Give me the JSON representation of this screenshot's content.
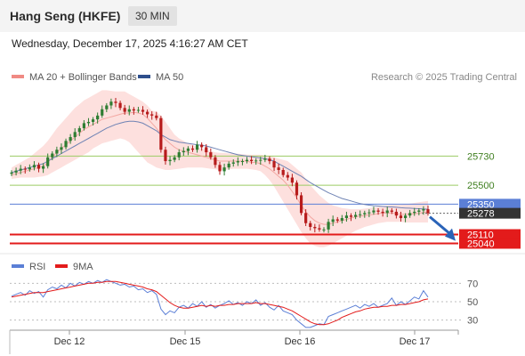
{
  "header": {
    "title": "Hang Seng (HKFE)",
    "timeframe": "30 MIN",
    "datetime": "Wednesday, December 17, 2025 4:16:27 AM CET"
  },
  "legend": {
    "items": [
      {
        "label": "MA 20 + Bollinger Bands",
        "color": "#f08a84"
      },
      {
        "label": "MA 50",
        "color": "#2e4f8c"
      }
    ],
    "credit": "Research © 2025 Trading Central"
  },
  "colors": {
    "candle_up": "#2e7d32",
    "candle_down": "#b71c1c",
    "bollinger_fill": "#fde0de",
    "ma20": "#f3a7a2",
    "ma50": "#6f83b4",
    "resistance": "#9ccc65",
    "pivot": "#5b7fd6",
    "support": "#e31b1b",
    "current_price": "#333333",
    "arrow": "#2a63b8",
    "rsi": "#5b7fd6",
    "rsi_ma": "#e31b1b"
  },
  "chart_data": [
    {
      "type": "candlestick",
      "xaxis_labels": [
        "Dec 12",
        "Dec 15",
        "Dec 16",
        "Dec 17"
      ],
      "levels": [
        {
          "label": "25730",
          "value": 25730,
          "kind": "resistance"
        },
        {
          "label": "25500",
          "value": 25500,
          "kind": "resistance"
        },
        {
          "label": "25350",
          "value": 25350,
          "kind": "pivot"
        },
        {
          "label": "25278",
          "value": 25278,
          "kind": "last"
        },
        {
          "label": "25110",
          "value": 25110,
          "kind": "support"
        },
        {
          "label": "25040",
          "value": 25040,
          "kind": "support"
        }
      ],
      "ylim": [
        24980,
        26260
      ],
      "close_path": [
        25600,
        25615,
        25630,
        25625,
        25640,
        25660,
        25630,
        25650,
        25720,
        25750,
        25780,
        25800,
        25850,
        25880,
        25920,
        25950,
        25990,
        26000,
        26020,
        26050,
        26100,
        26130,
        26160,
        26150,
        26110,
        26080,
        26100,
        26090,
        26095,
        26080,
        26060,
        26050,
        26030,
        25780,
        25690,
        25700,
        25720,
        25760,
        25770,
        25790,
        25780,
        25820,
        25800,
        25760,
        25720,
        25660,
        25610,
        25640,
        25670,
        25680,
        25690,
        25690,
        25700,
        25690,
        25695,
        25700,
        25710,
        25690,
        25640,
        25620,
        25580,
        25560,
        25520,
        25420,
        25280,
        25200,
        25170,
        25160,
        25150,
        25150,
        25210,
        25230,
        25220,
        25240,
        25260,
        25250,
        25265,
        25270,
        25280,
        25285,
        25300,
        25290,
        25280,
        25300,
        25290,
        25260,
        25240,
        25260,
        25280,
        25290,
        25300,
        25310,
        25278
      ],
      "ma20": [
        25580,
        25590,
        25600,
        25610,
        25620,
        25630,
        25640,
        25650,
        25680,
        25720,
        25760,
        25790,
        25820,
        25850,
        25880,
        25910,
        25940,
        25960,
        25980,
        26000,
        26020,
        26030,
        26040,
        26050,
        26060,
        26070,
        26070,
        26075,
        26070,
        26060,
        26030,
        25990,
        25950,
        25900,
        25860,
        25830,
        25800,
        25780,
        25770,
        25760,
        25750,
        25740,
        25730,
        25720,
        25710,
        25700,
        25690,
        25690,
        25690,
        25690,
        25690,
        25690,
        25690,
        25680,
        25680,
        25670,
        25650,
        25630,
        25600,
        25570,
        25540,
        25500,
        25450,
        25400,
        25340,
        25290,
        25250,
        25220,
        25200,
        25190,
        25190,
        25200,
        25210,
        25220,
        25230,
        25240,
        25250,
        25255,
        25260,
        25265,
        25270,
        25275,
        25280,
        25280,
        25280,
        25275,
        25270,
        25270,
        25272,
        25275,
        25278,
        25285,
        25290
      ],
      "ma50": [
        25600,
        25610,
        25620,
        25630,
        25640,
        25650,
        25660,
        25670,
        25690,
        25710,
        25730,
        25750,
        25770,
        25790,
        25810,
        25830,
        25850,
        25870,
        25890,
        25910,
        25930,
        25950,
        25965,
        25980,
        25990,
        26000,
        26005,
        26005,
        26000,
        25990,
        25970,
        25950,
        25930,
        25900,
        25880,
        25860,
        25850,
        25840,
        25835,
        25830,
        25825,
        25820,
        25815,
        25810,
        25800,
        25790,
        25780,
        25770,
        25760,
        25750,
        25740,
        25735,
        25730,
        25725,
        25720,
        25715,
        25710,
        25700,
        25690,
        25670,
        25650,
        25630,
        25610,
        25590,
        25570,
        25545,
        25520,
        25500,
        25480,
        25460,
        25440,
        25425,
        25410,
        25395,
        25385,
        25375,
        25365,
        25355,
        25348,
        25342,
        25338,
        25335,
        25332,
        25330,
        25328,
        25325,
        25322,
        25320,
        25318,
        25316,
        25314,
        25312,
        25310
      ],
      "boll_upper": [
        25640,
        25660,
        25680,
        25700,
        25720,
        25750,
        25780,
        25810,
        25850,
        25900,
        25950,
        25990,
        26030,
        26070,
        26110,
        26140,
        26170,
        26190,
        26210,
        26230,
        26250,
        26250,
        26245,
        26240,
        26240,
        26240,
        26220,
        26200,
        26180,
        26160,
        26130,
        26090,
        26080,
        26050,
        26000,
        25950,
        25900,
        25870,
        25850,
        25830,
        25820,
        25800,
        25790,
        25780,
        25770,
        25760,
        25755,
        25755,
        25750,
        25750,
        25748,
        25745,
        25742,
        25740,
        25740,
        25740,
        25735,
        25730,
        25720,
        25710,
        25700,
        25690,
        25660,
        25630,
        25600,
        25550,
        25500,
        25460,
        25420,
        25390,
        25360,
        25340,
        25330,
        25320,
        25315,
        25310,
        25310,
        25310,
        25315,
        25320,
        25325,
        25330,
        25335,
        25340,
        25345,
        25345,
        25345,
        25350,
        25355,
        25360,
        25365,
        25370,
        25375
      ],
      "boll_lower": [
        25550,
        25555,
        25560,
        25560,
        25560,
        25560,
        25565,
        25570,
        25580,
        25600,
        25620,
        25640,
        25660,
        25680,
        25700,
        25720,
        25740,
        25760,
        25790,
        25810,
        25830,
        25840,
        25850,
        25860,
        25870,
        25860,
        25840,
        25800,
        25760,
        25720,
        25680,
        25660,
        25640,
        25630,
        25620,
        25620,
        25625,
        25630,
        25635,
        25640,
        25640,
        25640,
        25640,
        25635,
        25630,
        25625,
        25620,
        25620,
        25625,
        25630,
        25630,
        25630,
        25630,
        25625,
        25620,
        25610,
        25580,
        25540,
        25490,
        25430,
        25370,
        25310,
        25250,
        25190,
        25130,
        25080,
        25040,
        25020,
        25010,
        25010,
        25020,
        25040,
        25060,
        25080,
        25100,
        25120,
        25140,
        25155,
        25170,
        25180,
        25190,
        25200,
        25205,
        25210,
        25210,
        25210,
        25210,
        25205,
        25205,
        25205,
        25205,
        25205,
        25205
      ]
    },
    {
      "type": "line",
      "legend": [
        "RSI",
        "9MA"
      ],
      "ylim": [
        20,
        80
      ],
      "yticks": [
        30,
        50,
        70
      ],
      "rsi": [
        56,
        58,
        60,
        57,
        62,
        59,
        61,
        55,
        63,
        66,
        64,
        68,
        65,
        70,
        67,
        71,
        69,
        72,
        70,
        73,
        71,
        74,
        72,
        70,
        68,
        69,
        66,
        67,
        63,
        64,
        60,
        62,
        58,
        42,
        36,
        40,
        38,
        44,
        46,
        43,
        48,
        45,
        50,
        44,
        47,
        43,
        46,
        48,
        51,
        47,
        49,
        46,
        50,
        48,
        52,
        46,
        49,
        44,
        41,
        46,
        40,
        38,
        36,
        30,
        26,
        22,
        22,
        24,
        26,
        25,
        34,
        36,
        38,
        40,
        42,
        44,
        46,
        43,
        47,
        45,
        48,
        44,
        46,
        48,
        54,
        46,
        50,
        47,
        51,
        55,
        53,
        62,
        55
      ],
      "rsi_ma": [
        55,
        56,
        57,
        58,
        59,
        60,
        60,
        60,
        61,
        62,
        63,
        64,
        65,
        66,
        67,
        68,
        69,
        70,
        70,
        71,
        71,
        72,
        72,
        72,
        71,
        70,
        69,
        68,
        67,
        66,
        64,
        63,
        61,
        57,
        53,
        49,
        46,
        44,
        43,
        43,
        44,
        45,
        46,
        45,
        46,
        45,
        46,
        46,
        47,
        47,
        48,
        48,
        48,
        48,
        49,
        48,
        48,
        47,
        46,
        45,
        44,
        42,
        40,
        37,
        34,
        31,
        28,
        26,
        25,
        25,
        26,
        28,
        30,
        33,
        35,
        37,
        39,
        40,
        42,
        43,
        44,
        44,
        45,
        45,
        46,
        46,
        47,
        47,
        48,
        49,
        50,
        52,
        53
      ]
    }
  ]
}
